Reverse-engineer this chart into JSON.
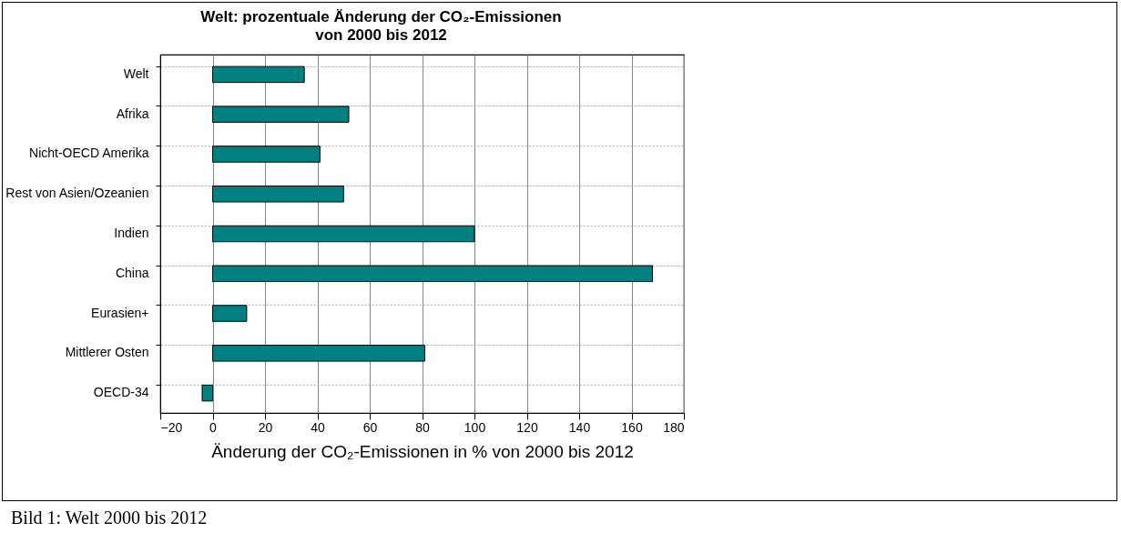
{
  "chart_data": {
    "type": "bar",
    "orientation": "horizontal",
    "title": "Welt: prozentuale Änderung der CO₂-Emissionen",
    "subtitle": "von 2000 bis 2012",
    "xlabel": "Änderung der CO₂-Emissionen in % von 2000 bis 2012",
    "categories": [
      "Welt",
      "Afrika",
      "Nicht-OECD Amerika",
      "Rest von Asien/Ozeanien",
      "Indien",
      "China",
      "Eurasien+",
      "Mittlerer Osten",
      "OECD-34"
    ],
    "values": [
      35,
      52,
      41,
      50,
      100,
      168,
      13,
      81,
      -4
    ],
    "color": "#008080",
    "xlim": [
      -20,
      180
    ],
    "xticks": [
      -20,
      0,
      20,
      40,
      60,
      80,
      100,
      120,
      140,
      160,
      180
    ],
    "grid": true,
    "annotations": [
      "Bild 1: Welt 2000 bis 2012"
    ]
  }
}
